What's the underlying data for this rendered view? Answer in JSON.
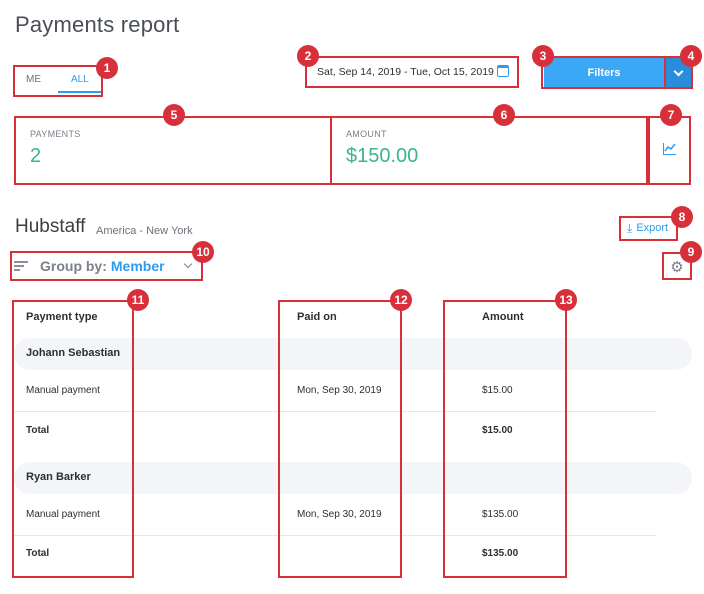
{
  "page": {
    "title": "Payments report"
  },
  "toggle": {
    "me_label": "ME",
    "all_label": "ALL",
    "selected": "ALL"
  },
  "date_range": {
    "value": "Sat, Sep 14, 2019 - Tue, Oct 15, 2019"
  },
  "filters_button": {
    "label": "Filters"
  },
  "stats": [
    {
      "label": "PAYMENTS",
      "value": "2"
    },
    {
      "label": "AMOUNT",
      "value": "$150.00"
    }
  ],
  "org": {
    "name": "Hubstaff",
    "timezone": "America - New York"
  },
  "export": {
    "label": "Export"
  },
  "group_by": {
    "label": "Group by:",
    "value": "Member"
  },
  "table": {
    "columns": [
      "Payment type",
      "Paid on",
      "Amount"
    ],
    "groups": [
      {
        "name": "Johann Sebastian",
        "rows": [
          {
            "type": "Manual payment",
            "paid_on": "Mon, Sep 30, 2019",
            "amount": "$15.00"
          },
          {
            "type": "Total",
            "paid_on": "",
            "amount": "$15.00"
          }
        ]
      },
      {
        "name": "Ryan Barker",
        "rows": [
          {
            "type": "Manual payment",
            "paid_on": "Mon, Sep 30, 2019",
            "amount": "$135.00"
          },
          {
            "type": "Total",
            "paid_on": "",
            "amount": "$135.00"
          }
        ]
      }
    ]
  },
  "annotations": [
    "1",
    "2",
    "3",
    "4",
    "5",
    "6",
    "7",
    "8",
    "9",
    "10",
    "11",
    "12",
    "13"
  ],
  "colors": {
    "accent": "#2d9cf0",
    "highlight": "#d8303b",
    "positive": "#3bb58a"
  }
}
